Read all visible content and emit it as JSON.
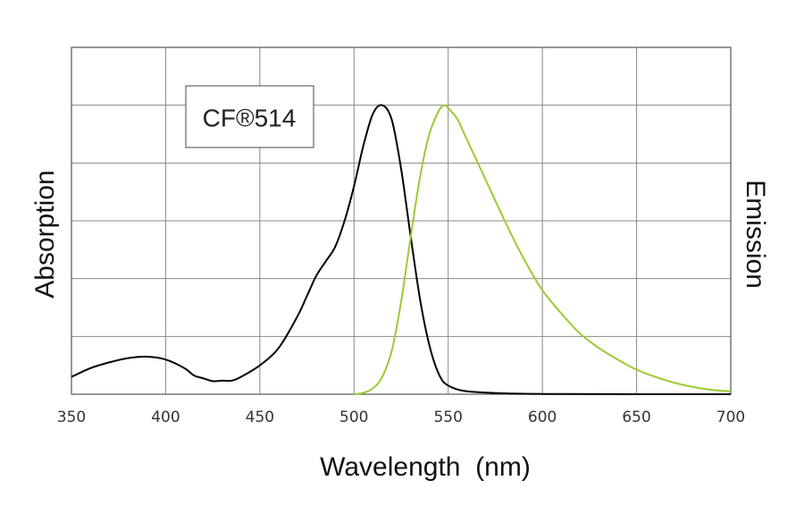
{
  "chart_data": {
    "type": "line",
    "title": "CF®514",
    "xlabel": "Wavelength  (nm)",
    "ylabel_left": "Absorption",
    "ylabel_right": "Emission",
    "xlim": [
      350,
      700
    ],
    "ylim": [
      0,
      1.2
    ],
    "x_ticks": [
      350,
      400,
      450,
      500,
      550,
      600,
      650,
      700
    ],
    "x_tick_labels": [
      "350",
      "400",
      "450",
      "500",
      "550",
      "600",
      "650",
      "700"
    ],
    "y_gridlines": [
      0,
      0.2,
      0.4,
      0.6,
      0.8,
      1.0,
      1.2
    ],
    "grid": true,
    "legend": "none",
    "series": [
      {
        "name": "Absorption",
        "color": "#000000",
        "x": [
          350,
          360,
          370,
          380,
          390,
          400,
          410,
          415,
          420,
          425,
          430,
          435,
          440,
          450,
          460,
          470,
          475,
          480,
          485,
          490,
          495,
          500,
          505,
          510,
          515,
          520,
          525,
          530,
          535,
          540,
          545,
          550,
          560,
          580,
          600,
          650,
          700
        ],
        "y": [
          0.06,
          0.09,
          0.11,
          0.125,
          0.13,
          0.12,
          0.09,
          0.065,
          0.055,
          0.045,
          0.047,
          0.047,
          0.06,
          0.1,
          0.16,
          0.27,
          0.34,
          0.41,
          0.46,
          0.51,
          0.6,
          0.72,
          0.86,
          0.97,
          1.0,
          0.95,
          0.78,
          0.55,
          0.33,
          0.17,
          0.07,
          0.03,
          0.01,
          0.003,
          0.001,
          0.0,
          0.0
        ]
      },
      {
        "name": "Emission",
        "color": "#99cc33",
        "x": [
          500,
          505,
          510,
          515,
          520,
          525,
          530,
          535,
          540,
          545,
          548,
          550,
          555,
          560,
          570,
          580,
          590,
          600,
          610,
          620,
          630,
          640,
          650,
          660,
          670,
          680,
          690,
          700
        ],
        "y": [
          0.0,
          0.005,
          0.02,
          0.06,
          0.15,
          0.32,
          0.54,
          0.75,
          0.9,
          0.98,
          1.0,
          0.99,
          0.95,
          0.88,
          0.74,
          0.6,
          0.47,
          0.36,
          0.28,
          0.21,
          0.16,
          0.12,
          0.085,
          0.06,
          0.04,
          0.025,
          0.015,
          0.01
        ]
      }
    ]
  }
}
